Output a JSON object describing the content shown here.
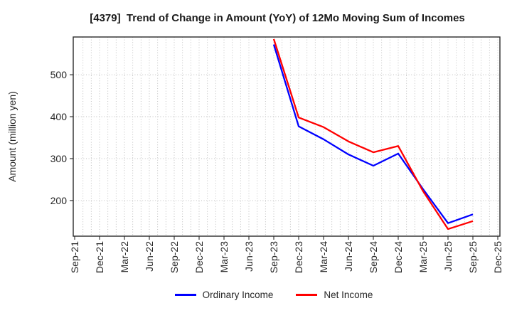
{
  "chart_data": {
    "type": "line",
    "title": "[4379]  Trend of Change in Amount (YoY) of 12Mo Moving Sum of Incomes",
    "ylabel": "Amount (million yen)",
    "x_ticklabels": [
      "Sep-21",
      "Dec-21",
      "Mar-22",
      "Jun-22",
      "Sep-22",
      "Dec-22",
      "Mar-23",
      "Jun-23",
      "Sep-23",
      "Dec-23",
      "Mar-24",
      "Jun-24",
      "Sep-24",
      "Dec-24",
      "Mar-25",
      "Jun-25",
      "Sep-25",
      "Dec-25"
    ],
    "x_ticklabel_rotation": 90,
    "y_ticks": [
      200,
      300,
      400,
      500
    ],
    "ylim": [
      115,
      590
    ],
    "grid": true,
    "grid_style": "dotted",
    "legend_position": "bottom-center",
    "series": [
      {
        "name": "Ordinary Income",
        "color": "#0000ff",
        "x": [
          "Sep-23",
          "Dec-23",
          "Mar-24",
          "Jun-24",
          "Sep-24",
          "Dec-24",
          "Mar-25",
          "Jun-25",
          "Sep-25"
        ],
        "values": [
          572,
          377,
          346,
          310,
          283,
          312,
          227,
          146,
          167
        ]
      },
      {
        "name": "Net Income",
        "color": "#ff0000",
        "x": [
          "Sep-23",
          "Dec-23",
          "Mar-24",
          "Jun-24",
          "Sep-24",
          "Dec-24",
          "Mar-25",
          "Jun-25",
          "Sep-25"
        ],
        "values": [
          585,
          398,
          375,
          341,
          315,
          330,
          222,
          132,
          151
        ]
      }
    ]
  }
}
